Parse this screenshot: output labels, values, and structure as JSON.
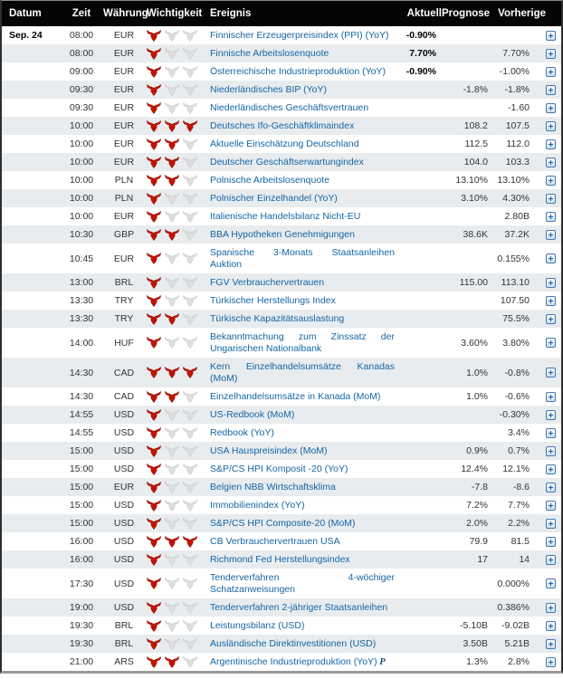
{
  "header": {
    "datum": "Datum",
    "zeit": "Zeit",
    "waehrung": "Währung",
    "wichtigkeit": "Wichtigkeit",
    "ereignis": "Ereignis",
    "aktuell": "Aktuell",
    "prognose": "Prognose",
    "vorherige": "Vorherige"
  },
  "icons": {
    "importance": "bull-icon",
    "expand": "plus-expand-icon"
  },
  "colors": {
    "header_bg": "#050505",
    "row_alt": "#e8ecef",
    "event_link": "#1465a4",
    "bull_active": "#c41200",
    "bull_inactive": "#dedede",
    "expand_blue": "#1d5c9e"
  },
  "rows": [
    {
      "date": "Sep. 24",
      "time": "08:00",
      "currency": "EUR",
      "importance": 1,
      "event": "Finnischer Erzeugerpreisindex (PPI) (YoY)",
      "actual": "-0.90%",
      "forecast": "",
      "previous": ""
    },
    {
      "date": "",
      "time": "08:00",
      "currency": "EUR",
      "importance": 1,
      "event": "Finnische Arbeitslosenquote",
      "actual": "7.70%",
      "forecast": "",
      "previous": "7.70%"
    },
    {
      "date": "",
      "time": "09:00",
      "currency": "EUR",
      "importance": 1,
      "event": "Österreichische Industrieproduktion (YoY)",
      "actual": "-0.90%",
      "forecast": "",
      "previous": "-1.00%"
    },
    {
      "date": "",
      "time": "09:30",
      "currency": "EUR",
      "importance": 1,
      "event": "Niederländisches BIP (YoY)",
      "actual": "",
      "forecast": "-1.8%",
      "previous": "-1.8%"
    },
    {
      "date": "",
      "time": "09:30",
      "currency": "EUR",
      "importance": 1,
      "event": "Niederländisches Geschäftsvertrauen",
      "actual": "",
      "forecast": "",
      "previous": "-1.60"
    },
    {
      "date": "",
      "time": "10:00",
      "currency": "EUR",
      "importance": 3,
      "event": "Deutsches Ifo-Geschäftklimaindex",
      "actual": "",
      "forecast": "108.2",
      "previous": "107.5"
    },
    {
      "date": "",
      "time": "10:00",
      "currency": "EUR",
      "importance": 2,
      "event": "Aktuelle Einschätzung Deutschland",
      "actual": "",
      "forecast": "112.5",
      "previous": "112.0"
    },
    {
      "date": "",
      "time": "10:00",
      "currency": "EUR",
      "importance": 2,
      "event": "Deutscher Geschäftserwartungindex",
      "actual": "",
      "forecast": "104.0",
      "previous": "103.3"
    },
    {
      "date": "",
      "time": "10:00",
      "currency": "PLN",
      "importance": 2,
      "event": "Polnische Arbeitslosenquote",
      "actual": "",
      "forecast": "13.10%",
      "previous": "13.10%"
    },
    {
      "date": "",
      "time": "10:00",
      "currency": "PLN",
      "importance": 1,
      "event": "Polnischer Einzelhandel (YoY)",
      "actual": "",
      "forecast": "3.10%",
      "previous": "4.30%"
    },
    {
      "date": "",
      "time": "10:00",
      "currency": "EUR",
      "importance": 1,
      "event": "Italienische Handelsbilanz Nicht-EU",
      "actual": "",
      "forecast": "",
      "previous": "2.80B"
    },
    {
      "date": "",
      "time": "10:30",
      "currency": "GBP",
      "importance": 2,
      "event": "BBA Hypotheken Genehmigungen",
      "actual": "",
      "forecast": "38.6K",
      "previous": "37.2K"
    },
    {
      "date": "",
      "time": "10:45",
      "currency": "EUR",
      "importance": 1,
      "event": "Spanische 3-Monats Staatsanleihen Auktion",
      "actual": "",
      "forecast": "",
      "previous": "0.155%"
    },
    {
      "date": "",
      "time": "13:00",
      "currency": "BRL",
      "importance": 1,
      "event": "FGV Verbrauchervertrauen",
      "actual": "",
      "forecast": "115.00",
      "previous": "113.10"
    },
    {
      "date": "",
      "time": "13:30",
      "currency": "TRY",
      "importance": 1,
      "event": "Türkischer Herstellungs Index",
      "actual": "",
      "forecast": "",
      "previous": "107.50"
    },
    {
      "date": "",
      "time": "13:30",
      "currency": "TRY",
      "importance": 2,
      "event": "Türkische Kapazitätsauslastung",
      "actual": "",
      "forecast": "",
      "previous": "75.5%"
    },
    {
      "date": "",
      "time": "14:00",
      "currency": "HUF",
      "importance": 1,
      "event": "Bekanntmachung zum Zinssatz der Ungarischen Nationalbank",
      "actual": "",
      "forecast": "3.60%",
      "previous": "3.80%"
    },
    {
      "date": "",
      "time": "14:30",
      "currency": "CAD",
      "importance": 3,
      "event": "Kern Einzelhandelsumsätze Kanadas (MoM)",
      "actual": "",
      "forecast": "1.0%",
      "previous": "-0.8%"
    },
    {
      "date": "",
      "time": "14:30",
      "currency": "CAD",
      "importance": 2,
      "event": "Einzelhandelsumsätze in Kanada (MoM)",
      "actual": "",
      "forecast": "1.0%",
      "previous": "-0.6%"
    },
    {
      "date": "",
      "time": "14:55",
      "currency": "USD",
      "importance": 1,
      "event": "US-Redbook (MoM)",
      "actual": "",
      "forecast": "",
      "previous": "-0.30%"
    },
    {
      "date": "",
      "time": "14:55",
      "currency": "USD",
      "importance": 1,
      "event": "Redbook (YoY)",
      "actual": "",
      "forecast": "",
      "previous": "3.4%"
    },
    {
      "date": "",
      "time": "15:00",
      "currency": "USD",
      "importance": 1,
      "event": "USA Hauspreisindex (MoM)",
      "actual": "",
      "forecast": "0.9%",
      "previous": "0.7%"
    },
    {
      "date": "",
      "time": "15:00",
      "currency": "USD",
      "importance": 1,
      "event": "S&P/CS HPI Komposit -20 (YoY)",
      "actual": "",
      "forecast": "12.4%",
      "previous": "12.1%"
    },
    {
      "date": "",
      "time": "15:00",
      "currency": "EUR",
      "importance": 1,
      "event": "Belgien NBB Wirtschaftsklima",
      "actual": "",
      "forecast": "-7.8",
      "previous": "-8.6"
    },
    {
      "date": "",
      "time": "15:00",
      "currency": "USD",
      "importance": 1,
      "event": "Immobilienindex (YoY)",
      "actual": "",
      "forecast": "7.2%",
      "previous": "7.7%"
    },
    {
      "date": "",
      "time": "15:00",
      "currency": "USD",
      "importance": 1,
      "event": "S&P/CS HPI Composite-20 (MoM)",
      "actual": "",
      "forecast": "2.0%",
      "previous": "2.2%"
    },
    {
      "date": "",
      "time": "16:00",
      "currency": "USD",
      "importance": 3,
      "event": "CB Verbrauchervertrauen USA",
      "actual": "",
      "forecast": "79.9",
      "previous": "81.5"
    },
    {
      "date": "",
      "time": "16:00",
      "currency": "USD",
      "importance": 1,
      "event": "Richmond Fed Herstellungsindex",
      "actual": "",
      "forecast": "17",
      "previous": "14"
    },
    {
      "date": "",
      "time": "17:30",
      "currency": "USD",
      "importance": 1,
      "event": "Tenderverfahren 4-wöchiger Schatzanweisungen",
      "actual": "",
      "forecast": "",
      "previous": "0.000%"
    },
    {
      "date": "",
      "time": "19:00",
      "currency": "USD",
      "importance": 1,
      "event": "Tenderverfahren 2-jähriger Staatsanleihen",
      "actual": "",
      "forecast": "",
      "previous": "0.386%"
    },
    {
      "date": "",
      "time": "19:30",
      "currency": "BRL",
      "importance": 1,
      "event": "Leistungsbilanz (USD)",
      "actual": "",
      "forecast": "-5.10B",
      "previous": "-9.02B"
    },
    {
      "date": "",
      "time": "19:30",
      "currency": "BRL",
      "importance": 1,
      "event": "Ausländische Direktinvestitionen (USD)",
      "actual": "",
      "forecast": "3.50B",
      "previous": "5.21B"
    },
    {
      "date": "",
      "time": "21:00",
      "currency": "ARS",
      "importance": 2,
      "event": "Argentinische Industrieproduktion (YoY)",
      "suffix": "P",
      "actual": "",
      "forecast": "1.3%",
      "previous": "2.8%"
    }
  ]
}
